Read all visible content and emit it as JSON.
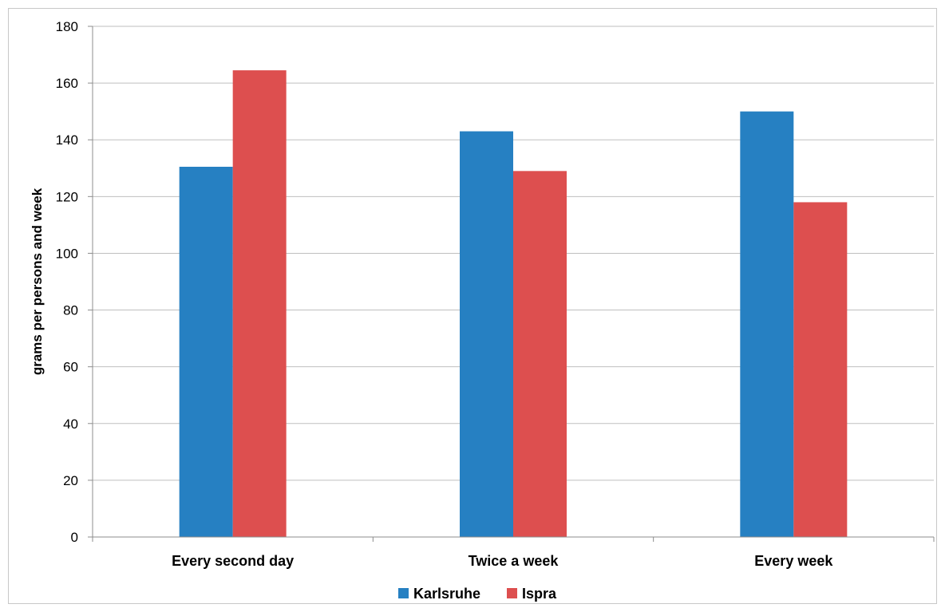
{
  "chart_data": {
    "type": "bar",
    "title": "",
    "xlabel": "",
    "ylabel": "grams per persons and week",
    "categories": [
      "Every second day",
      "Twice a week",
      "Every week"
    ],
    "series": [
      {
        "name": "Karlsruhe",
        "color": "#2680c2",
        "values": [
          130.5,
          143,
          150
        ]
      },
      {
        "name": "Ispra",
        "color": "#dd4f4f",
        "values": [
          164.5,
          129,
          118
        ]
      }
    ],
    "ylim": [
      0,
      180
    ],
    "yticks": [
      0,
      20,
      40,
      60,
      80,
      100,
      120,
      140,
      160,
      180
    ],
    "grid": true,
    "legend_position": "bottom"
  }
}
